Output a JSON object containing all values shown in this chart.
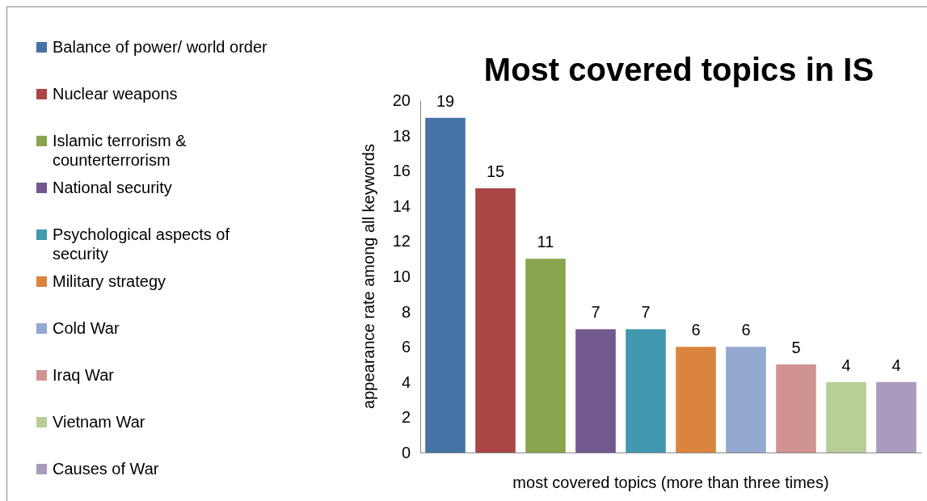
{
  "chart_data": {
    "type": "bar",
    "title": "Most covered topics in IS",
    "xlabel": "most covered  topics (more than three times)",
    "ylabel": "appearance rate among all keywords",
    "categories": [
      null,
      null,
      null,
      null,
      null,
      null,
      null,
      null,
      null,
      null
    ],
    "series": [
      {
        "name": "Balance of power/ world order",
        "color": "#4672a8",
        "values": [
          19,
          null,
          null,
          null,
          null,
          null,
          null,
          null,
          null,
          null
        ]
      },
      {
        "name": "Nuclear weapons",
        "color": "#aa4644",
        "values": [
          null,
          15,
          null,
          null,
          null,
          null,
          null,
          null,
          null,
          null
        ]
      },
      {
        "name": "Islamic terrorism & counterterrorism",
        "color": "#89a54e",
        "values": [
          null,
          null,
          11,
          null,
          null,
          null,
          null,
          null,
          null,
          null
        ]
      },
      {
        "name": "National security",
        "color": "#71588f",
        "values": [
          null,
          null,
          null,
          7,
          null,
          null,
          null,
          null,
          null,
          null
        ]
      },
      {
        "name": "Psychological aspects of security",
        "color": "#4198af",
        "values": [
          null,
          null,
          null,
          null,
          7,
          null,
          null,
          null,
          null,
          null
        ]
      },
      {
        "name": "Military strategy",
        "color": "#db843d",
        "values": [
          null,
          null,
          null,
          null,
          null,
          6,
          null,
          null,
          null,
          null
        ]
      },
      {
        "name": "Cold War",
        "color": "#93a9cf",
        "values": [
          null,
          null,
          null,
          null,
          null,
          null,
          6,
          null,
          null,
          null
        ]
      },
      {
        "name": "Iraq War",
        "color": "#d19392",
        "values": [
          null,
          null,
          null,
          null,
          null,
          null,
          null,
          5,
          null,
          null
        ]
      },
      {
        "name": "Vietnam War",
        "color": "#b9cd96",
        "values": [
          null,
          null,
          null,
          null,
          null,
          null,
          null,
          null,
          4,
          null
        ]
      },
      {
        "name": "Causes of War",
        "color": "#a99bbd",
        "values": [
          null,
          null,
          null,
          null,
          null,
          null,
          null,
          null,
          null,
          4
        ]
      }
    ],
    "ylim": [
      0,
      20
    ],
    "yticks": [
      0,
      2,
      4,
      6,
      8,
      10,
      12,
      14,
      16,
      18,
      20
    ],
    "data_labels": true,
    "legend": "left",
    "tick_labels": "y"
  }
}
